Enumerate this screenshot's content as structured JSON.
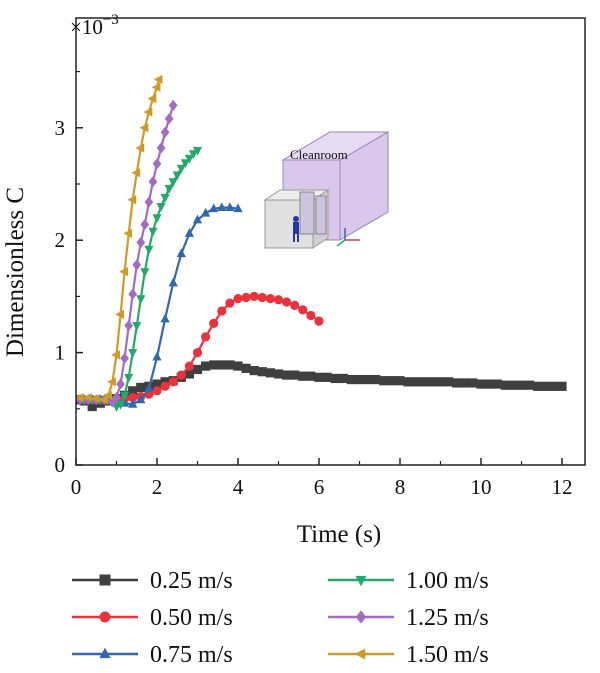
{
  "chart_data": {
    "type": "line",
    "xlabel": "Time (s)",
    "ylabel": "Dimensionless C",
    "y_multiplier": "×10",
    "y_multiplier_exp": "−3",
    "xlim": [
      0,
      13
    ],
    "ylim": [
      0,
      3.6
    ],
    "xticks": [
      0,
      2,
      4,
      6,
      8,
      10,
      12
    ],
    "yticks": [
      0,
      1,
      2,
      3
    ],
    "grid": false,
    "legend_position": "bottom",
    "inset_label": "Cleanroom",
    "series": [
      {
        "name": "0.25 m/s",
        "color": "#3f3f3f",
        "marker": "square",
        "x": [
          0.1,
          0.2,
          0.4,
          0.6,
          0.8,
          1.0,
          1.2,
          1.4,
          1.6,
          1.8,
          2.0,
          2.2,
          2.4,
          2.6,
          2.8,
          3.0,
          3.2,
          3.4,
          3.6,
          3.8,
          4.0,
          4.2,
          4.4,
          4.6,
          4.8,
          5.0,
          5.2,
          5.4,
          5.6,
          5.8,
          6.0,
          6.2,
          6.4,
          6.6,
          6.8,
          7.0,
          7.2,
          7.4,
          7.6,
          7.8,
          8.0,
          8.2,
          8.4,
          8.6,
          8.8,
          9.0,
          9.2,
          9.4,
          9.6,
          9.8,
          10.0,
          10.2,
          10.4,
          10.6,
          10.8,
          11.0,
          11.2,
          11.4,
          11.6,
          11.8,
          12.0
        ],
        "y": [
          0.58,
          0.57,
          0.52,
          0.55,
          0.57,
          0.59,
          0.62,
          0.66,
          0.69,
          0.7,
          0.72,
          0.74,
          0.75,
          0.78,
          0.81,
          0.85,
          0.88,
          0.89,
          0.89,
          0.89,
          0.88,
          0.86,
          0.84,
          0.83,
          0.82,
          0.81,
          0.8,
          0.8,
          0.79,
          0.79,
          0.78,
          0.78,
          0.77,
          0.77,
          0.76,
          0.76,
          0.76,
          0.76,
          0.75,
          0.75,
          0.75,
          0.74,
          0.74,
          0.74,
          0.74,
          0.74,
          0.74,
          0.73,
          0.73,
          0.73,
          0.72,
          0.72,
          0.72,
          0.71,
          0.71,
          0.71,
          0.71,
          0.7,
          0.7,
          0.7,
          0.7
        ]
      },
      {
        "name": "0.50 m/s",
        "color": "#e8323c",
        "marker": "circle",
        "x": [
          0.2,
          0.4,
          0.6,
          0.8,
          1.0,
          1.2,
          1.4,
          1.6,
          1.8,
          2.0,
          2.2,
          2.4,
          2.6,
          2.8,
          3.0,
          3.2,
          3.4,
          3.6,
          3.8,
          4.0,
          4.2,
          4.4,
          4.6,
          4.8,
          5.0,
          5.2,
          5.4,
          5.6,
          5.8,
          6.0
        ],
        "y": [
          0.58,
          0.58,
          0.58,
          0.58,
          0.58,
          0.59,
          0.6,
          0.61,
          0.63,
          0.66,
          0.7,
          0.74,
          0.8,
          0.88,
          1.0,
          1.14,
          1.26,
          1.37,
          1.44,
          1.48,
          1.49,
          1.5,
          1.49,
          1.48,
          1.47,
          1.45,
          1.42,
          1.38,
          1.33,
          1.28
        ]
      },
      {
        "name": "0.75 m/s",
        "color": "#2f68b0",
        "marker": "triangle-up",
        "x": [
          0.2,
          0.4,
          0.6,
          0.8,
          1.0,
          1.2,
          1.4,
          1.6,
          1.8,
          2.0,
          2.2,
          2.4,
          2.6,
          2.8,
          3.0,
          3.2,
          3.4,
          3.6,
          3.8,
          4.0
        ],
        "y": [
          0.58,
          0.58,
          0.58,
          0.58,
          0.57,
          0.55,
          0.54,
          0.58,
          0.68,
          0.96,
          1.3,
          1.62,
          1.88,
          2.06,
          2.18,
          2.24,
          2.28,
          2.29,
          2.29,
          2.28
        ]
      },
      {
        "name": "1.00 m/s",
        "color": "#23a96a",
        "marker": "triangle-down",
        "x": [
          0.2,
          0.4,
          0.6,
          0.8,
          1.0,
          1.1,
          1.2,
          1.3,
          1.4,
          1.5,
          1.6,
          1.7,
          1.8,
          1.9,
          2.0,
          2.1,
          2.2,
          2.3,
          2.4,
          2.5,
          2.6,
          2.7,
          2.8,
          2.9,
          3.0
        ],
        "y": [
          0.58,
          0.58,
          0.58,
          0.58,
          0.52,
          0.54,
          0.62,
          0.78,
          1.0,
          1.24,
          1.48,
          1.72,
          1.92,
          2.08,
          2.2,
          2.3,
          2.38,
          2.46,
          2.52,
          2.58,
          2.64,
          2.69,
          2.73,
          2.77,
          2.8
        ]
      },
      {
        "name": "1.25 m/s",
        "color": "#a46bc4",
        "marker": "diamond",
        "x": [
          0.1,
          0.3,
          0.5,
          0.7,
          0.9,
          1.0,
          1.1,
          1.2,
          1.3,
          1.4,
          1.5,
          1.6,
          1.7,
          1.8,
          1.9,
          2.0,
          2.1,
          2.2,
          2.3,
          2.4
        ],
        "y": [
          0.58,
          0.58,
          0.58,
          0.58,
          0.56,
          0.6,
          0.72,
          0.95,
          1.24,
          1.52,
          1.78,
          1.98,
          2.14,
          2.34,
          2.52,
          2.68,
          2.82,
          2.96,
          3.08,
          3.2
        ]
      },
      {
        "name": "1.50 m/s",
        "color": "#d19a25",
        "marker": "triangle-left",
        "x": [
          0.1,
          0.3,
          0.5,
          0.7,
          0.8,
          0.9,
          1.0,
          1.1,
          1.2,
          1.3,
          1.4,
          1.5,
          1.6,
          1.7,
          1.8,
          1.9,
          2.0,
          2.05
        ],
        "y": [
          0.6,
          0.6,
          0.59,
          0.58,
          0.62,
          0.74,
          0.98,
          1.34,
          1.72,
          2.06,
          2.36,
          2.6,
          2.82,
          3.0,
          3.14,
          3.26,
          3.36,
          3.43
        ]
      }
    ]
  }
}
